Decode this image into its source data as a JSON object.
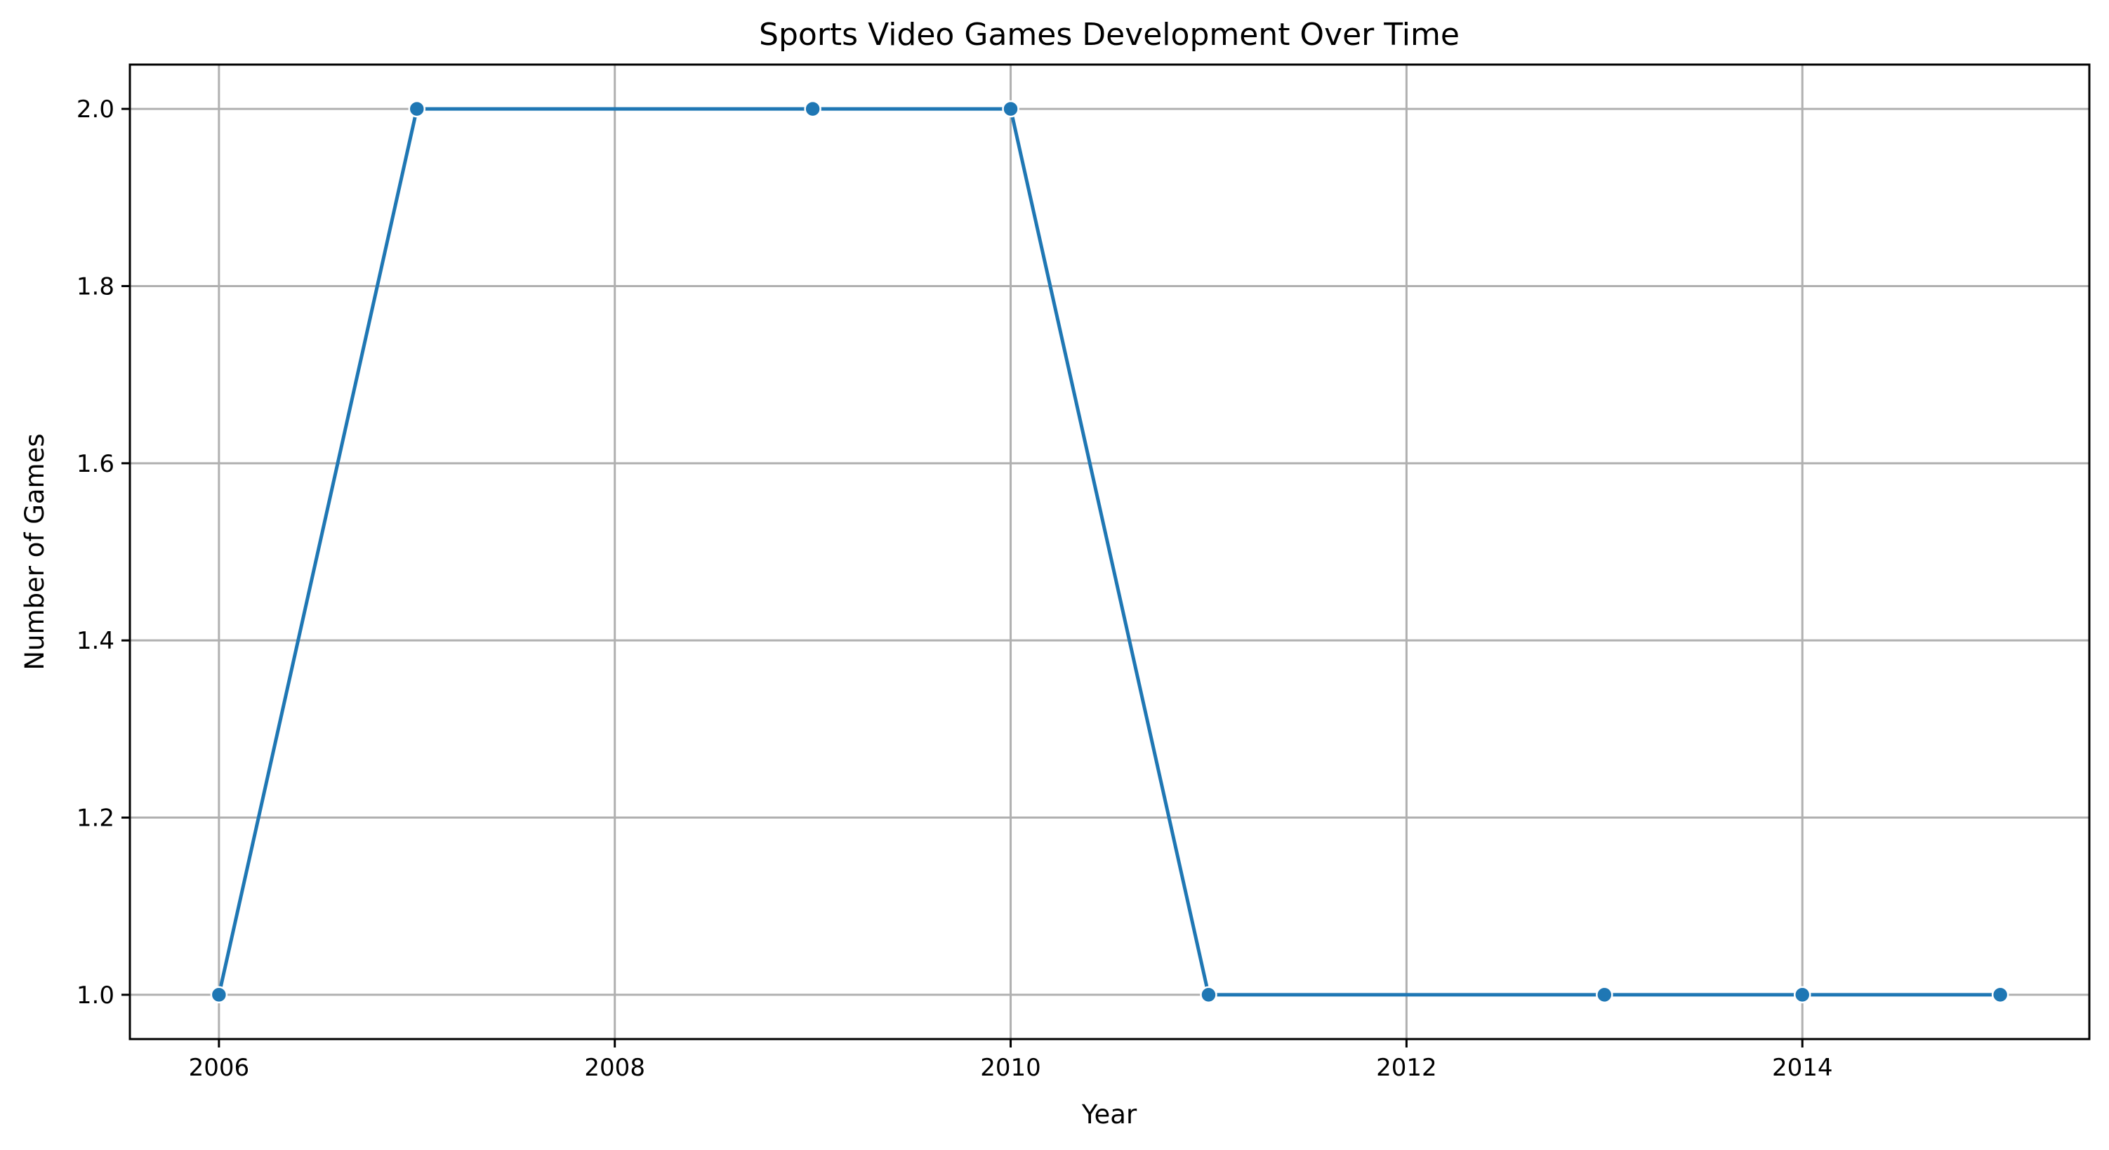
{
  "chart_data": {
    "type": "line",
    "title": "Sports Video Games Development Over Time",
    "xlabel": "Year",
    "ylabel": "Number of Games",
    "x": [
      2006,
      2007,
      2009,
      2010,
      2011,
      2013,
      2014,
      2015
    ],
    "series": [
      {
        "values": [
          1,
          2,
          2,
          2,
          1,
          1,
          1,
          1
        ],
        "color": "#1f77b4"
      }
    ],
    "xlim": [
      2005.55,
      2015.45
    ],
    "ylim": [
      0.95,
      2.05
    ],
    "xticks": [
      2006,
      2008,
      2010,
      2012,
      2014
    ],
    "yticks": [
      1.0,
      1.2,
      1.4,
      1.6,
      1.8,
      2.0
    ],
    "grid": true
  }
}
